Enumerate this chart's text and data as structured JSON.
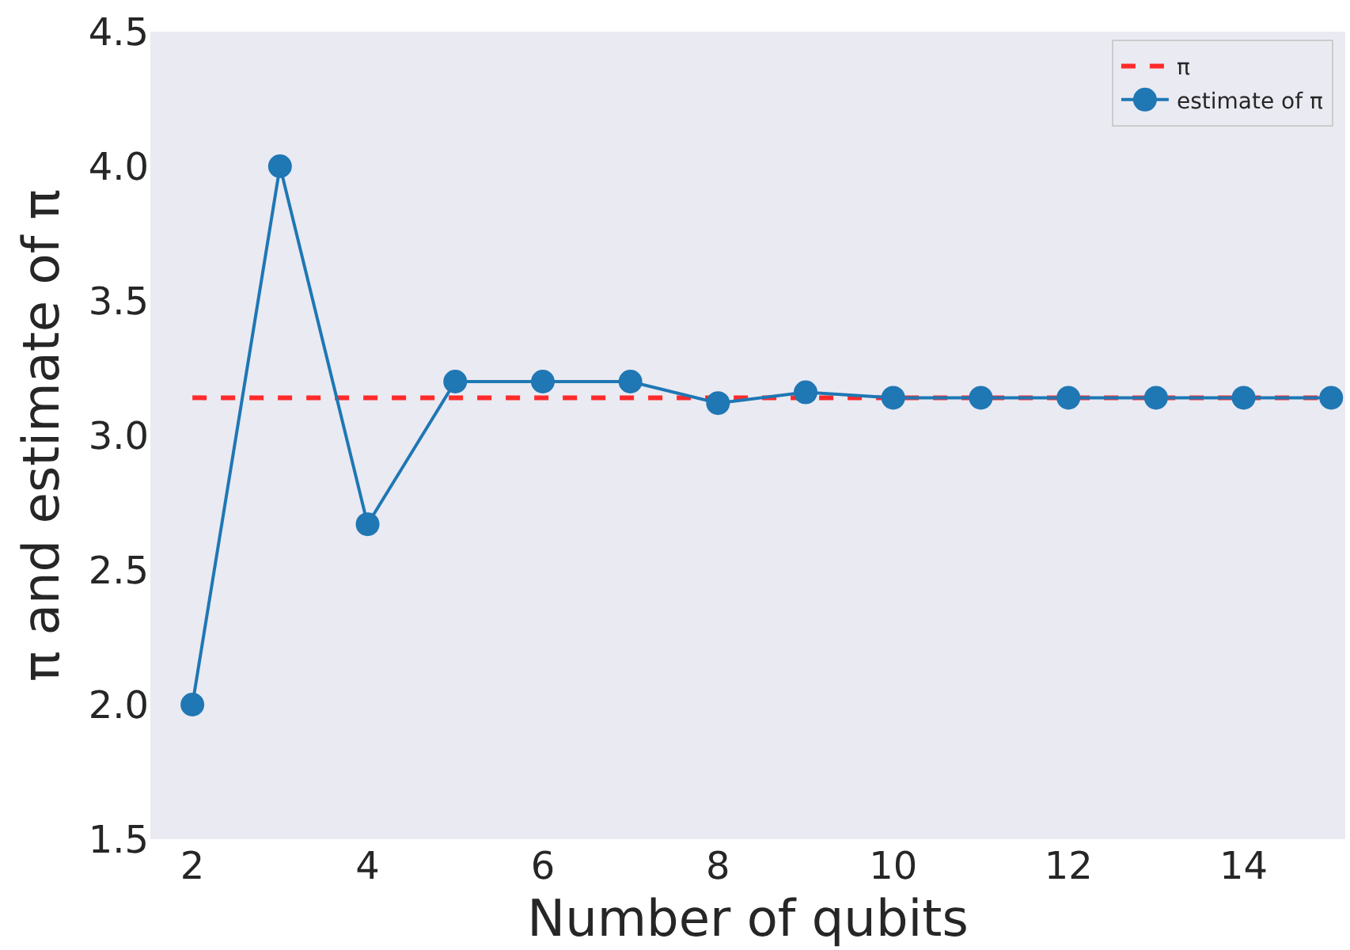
{
  "chart_data": {
    "type": "line",
    "xlabel": "Number of qubits",
    "ylabel": "π and estimate of π",
    "x": [
      2,
      3,
      4,
      5,
      6,
      7,
      8,
      9,
      10,
      11,
      12,
      13,
      14,
      15
    ],
    "series": [
      {
        "name": "π",
        "color": "#ff2a2a",
        "x": [
          2,
          15
        ],
        "values": [
          3.14,
          3.14
        ],
        "line_style": "dashed",
        "marker": "none"
      },
      {
        "name": "estimate of π",
        "color": "#1f77b4",
        "values": [
          2.0,
          4.0,
          2.67,
          3.2,
          3.2,
          3.2,
          3.12,
          3.16,
          3.14,
          3.14,
          3.14,
          3.14,
          3.14,
          3.14
        ],
        "line_style": "solid",
        "marker": "circle"
      }
    ],
    "xlim": [
      1.52,
      15.16
    ],
    "xticks": [
      2,
      4,
      6,
      8,
      10,
      12,
      14
    ],
    "ylim": [
      1.5,
      4.5
    ],
    "yticks": [
      1.5,
      {
        "value": 2,
        "label": "2.0"
      },
      2.5,
      {
        "value": 3,
        "label": "3.0"
      },
      3.5,
      {
        "value": 4,
        "label": "4.0"
      },
      4.5
    ],
    "grid": false,
    "legend": "top right"
  }
}
